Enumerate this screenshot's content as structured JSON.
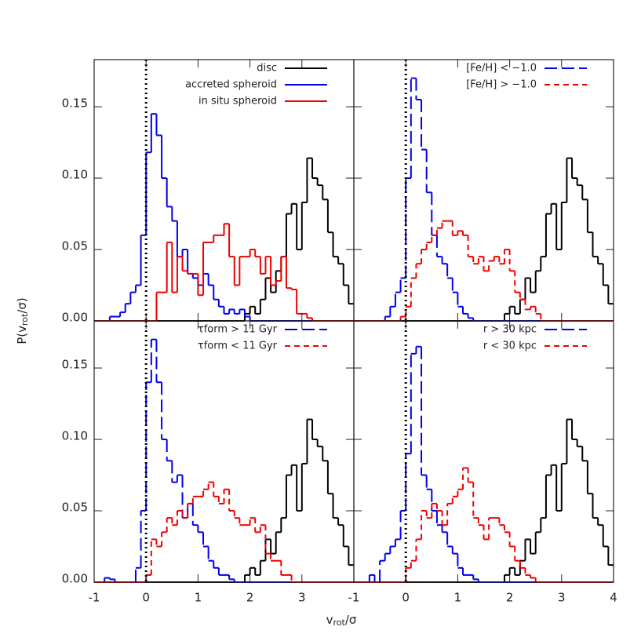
{
  "xlabel": {
    "base": "v",
    "sub": "rot",
    "tail": "/σ"
  },
  "ylabel": {
    "head": "P(v",
    "sub": "rot",
    "tail": "/σ)"
  },
  "chart_data": [
    {
      "type": "histogram",
      "bins": [
        -1,
        -0.9,
        -0.8,
        -0.7,
        -0.6,
        -0.5,
        -0.4,
        -0.3,
        -0.2,
        -0.1,
        0,
        0.1,
        0.2,
        0.3,
        0.4,
        0.5,
        0.6,
        0.7,
        0.8,
        0.9,
        1,
        1.1,
        1.2,
        1.3,
        1.4,
        1.5,
        1.6,
        1.7,
        1.8,
        1.9,
        2,
        2.1,
        2.2,
        2.3,
        2.4,
        2.5,
        2.6,
        2.7,
        2.8,
        2.9,
        3,
        3.1,
        3.2,
        3.3,
        3.4,
        3.5,
        3.6,
        3.7,
        3.8,
        3.9,
        4
      ],
      "series": [
        {
          "name": "disc",
          "color": "#000000",
          "dash": "solid",
          "values": [
            0,
            0,
            0,
            0,
            0,
            0,
            0,
            0,
            0,
            0,
            0,
            0,
            0,
            0,
            0,
            0,
            0,
            0,
            0,
            0,
            0,
            0,
            0,
            0,
            0,
            0,
            0,
            0,
            0,
            0.005,
            0.01,
            0.005,
            0.015,
            0.03,
            0.02,
            0.035,
            0.045,
            0.075,
            0.082,
            0.05,
            0.083,
            0.114,
            0.1,
            0.095,
            0.085,
            0.062,
            0.045,
            0.04,
            0.025,
            0.012
          ]
        },
        {
          "name": "accreted spheroid",
          "color": "#0000ee",
          "dash": "solid",
          "values": [
            0,
            0,
            0,
            0.003,
            0.003,
            0.006,
            0.012,
            0.02,
            0.025,
            0.06,
            0.118,
            0.145,
            0.13,
            0.1,
            0.08,
            0.07,
            0.045,
            0.05,
            0.033,
            0.03,
            0.025,
            0.033,
            0.025,
            0.015,
            0.01,
            0.005,
            0.008,
            0.005,
            0.008,
            0.003,
            0,
            0,
            0,
            0,
            0,
            0,
            0,
            0,
            0,
            0,
            0,
            0,
            0,
            0,
            0,
            0,
            0,
            0,
            0,
            0
          ]
        },
        {
          "name": "in situ spheroid",
          "color": "#ee0000",
          "dash": "solid",
          "values": [
            0,
            0,
            0,
            0,
            0,
            0,
            0,
            0,
            0,
            0,
            0,
            0,
            0.02,
            0.02,
            0.055,
            0.02,
            0.045,
            0.035,
            0.033,
            0.033,
            0.018,
            0.055,
            0.055,
            0.06,
            0.06,
            0.068,
            0.045,
            0.025,
            0.045,
            0.045,
            0.05,
            0.045,
            0.033,
            0.045,
            0.025,
            0.028,
            0.045,
            0.023,
            0.022,
            0.005,
            0.005,
            0.002,
            0,
            0,
            0,
            0,
            0,
            0,
            0,
            0
          ]
        }
      ],
      "legend_series": [
        0,
        1,
        2
      ],
      "xlim": [
        -1,
        4
      ],
      "xticks": [
        -1,
        0,
        1,
        2,
        3
      ],
      "xtick_labels": false,
      "ylim": [
        0,
        0.183
      ],
      "yticks": [
        {
          "value": 0,
          "label": "0.00"
        },
        {
          "value": 0.05,
          "label": "0.05"
        },
        {
          "value": 0.1,
          "label": "0.10"
        },
        {
          "value": 0.15,
          "label": "0.15"
        }
      ],
      "vline": 0
    },
    {
      "type": "histogram",
      "bins": [
        -1,
        -0.9,
        -0.8,
        -0.7,
        -0.6,
        -0.5,
        -0.4,
        -0.3,
        -0.2,
        -0.1,
        0,
        0.1,
        0.2,
        0.3,
        0.4,
        0.5,
        0.6,
        0.7,
        0.8,
        0.9,
        1,
        1.1,
        1.2,
        1.3,
        1.4,
        1.5,
        1.6,
        1.7,
        1.8,
        1.9,
        2,
        2.1,
        2.2,
        2.3,
        2.4,
        2.5,
        2.6,
        2.7,
        2.8,
        2.9,
        3,
        3.1,
        3.2,
        3.3,
        3.4,
        3.5,
        3.6,
        3.7,
        3.8,
        3.9,
        4
      ],
      "series": [
        {
          "name": "disc",
          "color": "#000000",
          "dash": "solid",
          "values": [
            0,
            0,
            0,
            0,
            0,
            0,
            0,
            0,
            0,
            0,
            0,
            0,
            0,
            0,
            0,
            0,
            0,
            0,
            0,
            0,
            0,
            0,
            0,
            0,
            0,
            0,
            0,
            0,
            0,
            0.005,
            0.01,
            0.005,
            0.015,
            0.03,
            0.02,
            0.035,
            0.045,
            0.075,
            0.082,
            0.05,
            0.083,
            0.114,
            0.1,
            0.095,
            0.085,
            0.062,
            0.045,
            0.04,
            0.025,
            0.012
          ]
        },
        {
          "name": "[Fe/H] < −1.0",
          "color": "#0000ee",
          "dash": "long",
          "values": [
            0,
            0,
            0,
            0,
            0,
            0,
            0.003,
            0.01,
            0.02,
            0.03,
            0.1,
            0.17,
            0.155,
            0.12,
            0.09,
            0.06,
            0.045,
            0.04,
            0.03,
            0.02,
            0.01,
            0.005,
            0.002,
            0,
            0,
            0,
            0,
            0,
            0,
            0,
            0,
            0,
            0,
            0,
            0,
            0,
            0,
            0,
            0,
            0,
            0,
            0,
            0,
            0,
            0,
            0,
            0,
            0,
            0,
            0
          ]
        },
        {
          "name": "[Fe/H] > −1.0",
          "color": "#ee0000",
          "dash": "short",
          "values": [
            0,
            0,
            0,
            0,
            0,
            0,
            0,
            0,
            0,
            0.003,
            0.01,
            0.03,
            0.04,
            0.05,
            0.055,
            0.06,
            0.065,
            0.07,
            0.07,
            0.06,
            0.063,
            0.06,
            0.045,
            0.04,
            0.045,
            0.035,
            0.042,
            0.045,
            0.04,
            0.05,
            0.035,
            0.02,
            0.015,
            0.008,
            0.01,
            0.005,
            0,
            0,
            0,
            0,
            0,
            0,
            0,
            0,
            0,
            0,
            0,
            0,
            0,
            0
          ]
        }
      ],
      "legend_series": [
        1,
        2
      ],
      "xlim": [
        -1,
        4
      ],
      "xticks": [
        -1,
        0,
        1,
        2,
        3,
        4
      ],
      "xtick_labels": false,
      "ylim": [
        0,
        0.183
      ],
      "yticks": [
        0,
        0.05,
        0.1,
        0.15
      ],
      "ytick_labels": false,
      "vline": 0
    },
    {
      "type": "histogram",
      "bins": [
        -1,
        -0.9,
        -0.8,
        -0.7,
        -0.6,
        -0.5,
        -0.4,
        -0.3,
        -0.2,
        -0.1,
        0,
        0.1,
        0.2,
        0.3,
        0.4,
        0.5,
        0.6,
        0.7,
        0.8,
        0.9,
        1,
        1.1,
        1.2,
        1.3,
        1.4,
        1.5,
        1.6,
        1.7,
        1.8,
        1.9,
        2,
        2.1,
        2.2,
        2.3,
        2.4,
        2.5,
        2.6,
        2.7,
        2.8,
        2.9,
        3,
        3.1,
        3.2,
        3.3,
        3.4,
        3.5,
        3.6,
        3.7,
        3.8,
        3.9,
        4
      ],
      "series": [
        {
          "name": "disc",
          "color": "#000000",
          "dash": "solid",
          "values": [
            0,
            0,
            0,
            0,
            0,
            0,
            0,
            0,
            0,
            0,
            0,
            0,
            0,
            0,
            0,
            0,
            0,
            0,
            0,
            0,
            0,
            0,
            0,
            0,
            0,
            0,
            0,
            0,
            0,
            0.005,
            0.01,
            0.005,
            0.015,
            0.03,
            0.02,
            0.035,
            0.045,
            0.075,
            0.082,
            0.05,
            0.083,
            0.114,
            0.1,
            0.095,
            0.085,
            0.062,
            0.045,
            0.04,
            0.025,
            0.012
          ]
        },
        {
          "name": "τform > 11 Gyr",
          "color": "#0000ee",
          "dash": "long",
          "values": [
            0,
            0,
            0.003,
            0.002,
            0,
            0,
            0,
            0,
            0.01,
            0.05,
            0.14,
            0.17,
            0.14,
            0.1,
            0.085,
            0.07,
            0.075,
            0.045,
            0.055,
            0.04,
            0.035,
            0.025,
            0.015,
            0.01,
            0.005,
            0.005,
            0.002,
            0,
            0,
            0,
            0,
            0,
            0,
            0,
            0,
            0,
            0,
            0,
            0,
            0,
            0,
            0,
            0,
            0,
            0,
            0,
            0,
            0,
            0,
            0
          ]
        },
        {
          "name": "τform < 11 Gyr",
          "color": "#ee0000",
          "dash": "short",
          "values": [
            0,
            0,
            0,
            0,
            0,
            0,
            0,
            0,
            0,
            0,
            0.005,
            0.03,
            0.025,
            0.035,
            0.045,
            0.04,
            0.05,
            0.045,
            0.055,
            0.06,
            0.06,
            0.065,
            0.07,
            0.06,
            0.055,
            0.065,
            0.05,
            0.045,
            0.04,
            0.04,
            0.045,
            0.035,
            0.04,
            0.02,
            0.015,
            0.015,
            0.005,
            0.005,
            0,
            0,
            0,
            0,
            0,
            0,
            0,
            0,
            0,
            0,
            0,
            0
          ]
        }
      ],
      "legend_series": [
        1,
        2
      ],
      "xlim": [
        -1,
        4
      ],
      "xticks": [
        -1,
        0,
        1,
        2,
        3
      ],
      "xtick_labels": true,
      "ylim": [
        0,
        0.183
      ],
      "yticks": [
        {
          "value": 0,
          "label": "0.00"
        },
        {
          "value": 0.05,
          "label": "0.05"
        },
        {
          "value": 0.1,
          "label": "0.10"
        },
        {
          "value": 0.15,
          "label": "0.15"
        }
      ],
      "vline": 0
    },
    {
      "type": "histogram",
      "bins": [
        -1,
        -0.9,
        -0.8,
        -0.7,
        -0.6,
        -0.5,
        -0.4,
        -0.3,
        -0.2,
        -0.1,
        0,
        0.1,
        0.2,
        0.3,
        0.4,
        0.5,
        0.6,
        0.7,
        0.8,
        0.9,
        1,
        1.1,
        1.2,
        1.3,
        1.4,
        1.5,
        1.6,
        1.7,
        1.8,
        1.9,
        2,
        2.1,
        2.2,
        2.3,
        2.4,
        2.5,
        2.6,
        2.7,
        2.8,
        2.9,
        3,
        3.1,
        3.2,
        3.3,
        3.4,
        3.5,
        3.6,
        3.7,
        3.8,
        3.9,
        4
      ],
      "series": [
        {
          "name": "disc",
          "color": "#000000",
          "dash": "solid",
          "values": [
            0,
            0,
            0,
            0,
            0,
            0,
            0,
            0,
            0,
            0,
            0,
            0,
            0,
            0,
            0,
            0,
            0,
            0,
            0,
            0,
            0,
            0,
            0,
            0,
            0,
            0,
            0,
            0,
            0,
            0.005,
            0.01,
            0.005,
            0.015,
            0.03,
            0.02,
            0.035,
            0.045,
            0.075,
            0.082,
            0.05,
            0.083,
            0.114,
            0.1,
            0.095,
            0.085,
            0.062,
            0.045,
            0.04,
            0.025,
            0.012
          ]
        },
        {
          "name": "r > 30 kpc",
          "color": "#0000ee",
          "dash": "long",
          "values": [
            0,
            0,
            0,
            0.005,
            0,
            0.015,
            0.02,
            0.025,
            0.03,
            0.05,
            0.09,
            0.16,
            0.165,
            0.075,
            0.065,
            0.05,
            0.04,
            0.035,
            0.025,
            0.02,
            0.01,
            0.005,
            0.005,
            0.002,
            0,
            0,
            0,
            0,
            0,
            0,
            0,
            0,
            0,
            0,
            0,
            0,
            0,
            0,
            0,
            0,
            0,
            0,
            0,
            0,
            0,
            0,
            0,
            0,
            0,
            0
          ]
        },
        {
          "name": "r < 30 kpc",
          "color": "#ee0000",
          "dash": "short",
          "values": [
            0,
            0,
            0,
            0,
            0,
            0,
            0,
            0,
            0,
            0,
            0.01,
            0.015,
            0.03,
            0.05,
            0.045,
            0.055,
            0.05,
            0.04,
            0.055,
            0.06,
            0.065,
            0.08,
            0.07,
            0.045,
            0.04,
            0.03,
            0.045,
            0.045,
            0.04,
            0.035,
            0.025,
            0.015,
            0.01,
            0.005,
            0.003,
            0,
            0,
            0,
            0,
            0,
            0,
            0,
            0,
            0,
            0,
            0,
            0,
            0,
            0,
            0
          ]
        }
      ],
      "legend_series": [
        1,
        2
      ],
      "xlim": [
        -1,
        4
      ],
      "xticks": [
        -1,
        0,
        1,
        2,
        3,
        4
      ],
      "xtick_labels": true,
      "ylim": [
        0,
        0.183
      ],
      "yticks": [
        0,
        0.05,
        0.1,
        0.15
      ],
      "ytick_labels": false,
      "vline": 0
    }
  ]
}
